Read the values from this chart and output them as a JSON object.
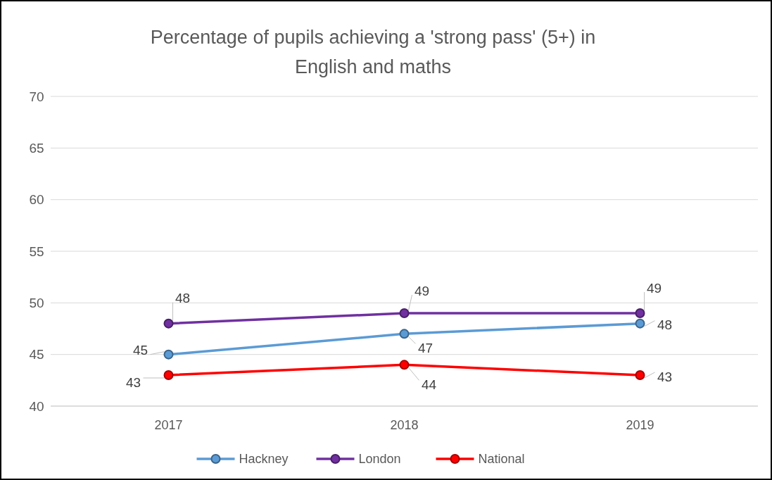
{
  "chart_data": {
    "type": "line",
    "title": "Percentage of pupils achieving a 'strong pass' (5+) in English and maths",
    "categories": [
      "2017",
      "2018",
      "2019"
    ],
    "series": [
      {
        "name": "Hackney",
        "color": "#5b9bd5",
        "values": [
          45,
          47,
          48
        ]
      },
      {
        "name": "London",
        "color": "#7030a0",
        "values": [
          48,
          49,
          49
        ]
      },
      {
        "name": "National",
        "color": "#ff0000",
        "values": [
          43,
          44,
          43
        ]
      }
    ],
    "ylim": [
      40,
      70
    ],
    "yticks": [
      40,
      45,
      50,
      55,
      60,
      65,
      70
    ],
    "grid": "y",
    "legend": "bottom",
    "marker": "circle",
    "data_labels": true
  }
}
